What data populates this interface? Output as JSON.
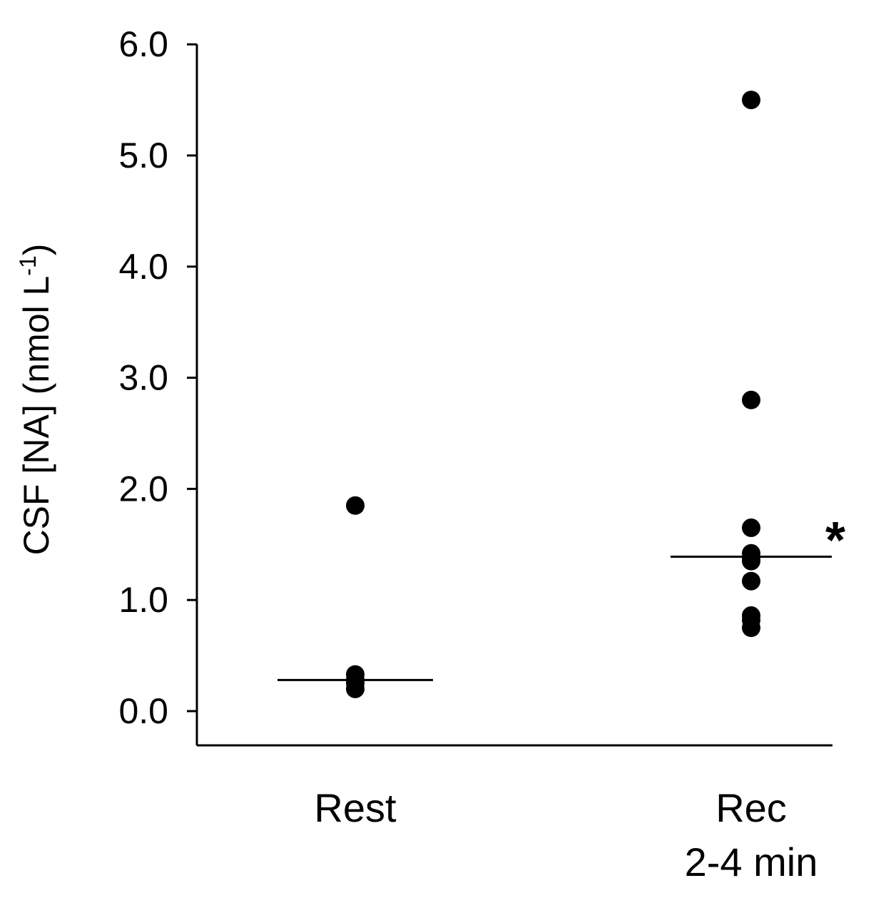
{
  "chart_data": {
    "type": "scatter",
    "title": "",
    "ylabel": "CSF [NA] (nmol L",
    "ylabel_superscript": "-1",
    "ylabel_suffix": ")",
    "xlabel": "",
    "ylim": [
      -0.3,
      6.0
    ],
    "yticks": [
      "0.0",
      "1.0",
      "2.0",
      "3.0",
      "4.0",
      "5.0",
      "6.0"
    ],
    "categories": [
      "Rest",
      "Rec 2-4 min"
    ],
    "category_lines": [
      [
        "Rest"
      ],
      [
        "Rec",
        "2-4 min"
      ]
    ],
    "grid": false,
    "legend": "none",
    "points": [
      {
        "category": "Rest",
        "values": [
          1.85,
          0.33,
          0.28,
          0.25,
          0.2
        ]
      },
      {
        "category": "Rec 2-4 min",
        "values": [
          5.5,
          2.8,
          1.65,
          1.42,
          1.38,
          1.35,
          1.17,
          0.86,
          0.82,
          0.75
        ]
      }
    ],
    "medians": [
      {
        "category": "Rest",
        "value": 0.28
      },
      {
        "category": "Rec 2-4 min",
        "value": 1.39
      }
    ],
    "annotations": [
      {
        "category": "Rec 2-4 min",
        "text": "*",
        "value": 1.65
      }
    ],
    "colors": {
      "marks": "#000000",
      "axis": "#000000",
      "background": "#ffffff"
    }
  }
}
